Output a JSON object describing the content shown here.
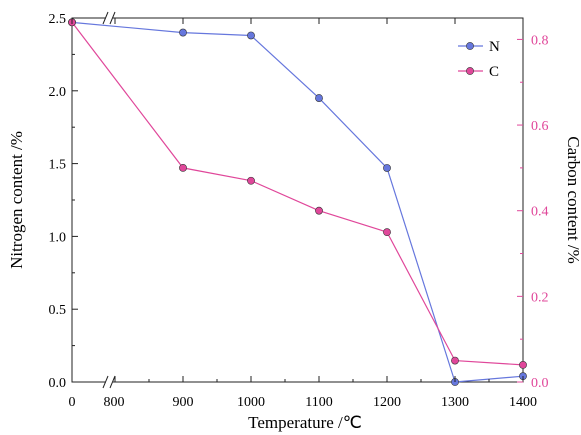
{
  "chart_data": {
    "type": "line",
    "title": "",
    "xlabel": "Temperature /℃",
    "ylabel_left": "Nitrogen content /%",
    "ylabel_right": "Carbon content /%",
    "x_ticks": [
      "0",
      "800",
      "900",
      "1000",
      "1100",
      "1200",
      "1300",
      "1400"
    ],
    "x": [
      0,
      900,
      1000,
      1100,
      1200,
      1300,
      1400
    ],
    "axis_break": "between 0 and 800",
    "y_left": {
      "lim": [
        0,
        2.5
      ],
      "ticks": [
        "0.0",
        "0.5",
        "1.0",
        "1.5",
        "2.0",
        "2.5"
      ]
    },
    "y_right": {
      "lim": [
        0,
        0.85
      ],
      "ticks": [
        "0.0",
        "0.2",
        "0.4",
        "0.6",
        "0.8"
      ]
    },
    "grid": false,
    "legend_position": "top-right",
    "series": [
      {
        "name": "N",
        "axis": "left",
        "color": "#6677dd",
        "values": [
          2.47,
          2.4,
          2.38,
          1.95,
          1.47,
          0.0,
          0.04
        ]
      },
      {
        "name": "C",
        "axis": "right",
        "color": "#e0479a",
        "values": [
          0.84,
          0.5,
          0.47,
          0.4,
          0.35,
          0.05,
          0.04
        ]
      }
    ]
  }
}
